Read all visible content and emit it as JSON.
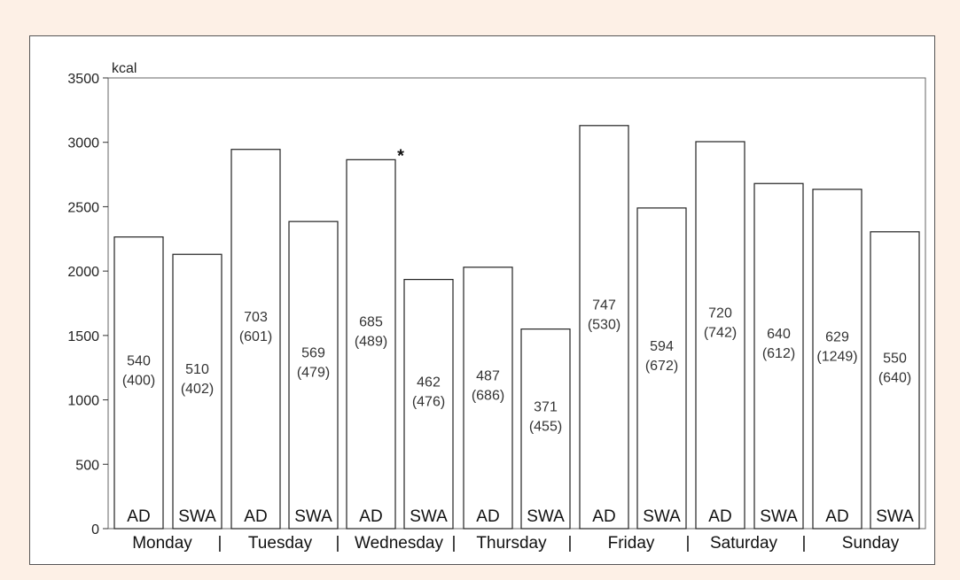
{
  "chart_data": {
    "type": "bar",
    "unit_label": "kcal",
    "ylim": [
      0,
      3500
    ],
    "yticks": [
      0,
      500,
      1000,
      1500,
      2000,
      2500,
      3000,
      3500
    ],
    "days": [
      "Monday",
      "Tuesday",
      "Wednesday",
      "Thursday",
      "Friday",
      "Saturday",
      "Sunday"
    ],
    "separator": "|",
    "bars": [
      {
        "day": "Monday",
        "group": "AD",
        "value": 2265,
        "label_top": "540",
        "label_bottom": "(400)"
      },
      {
        "day": "Monday",
        "group": "SWA",
        "value": 2130,
        "label_top": "510",
        "label_bottom": "(402)"
      },
      {
        "day": "Tuesday",
        "group": "AD",
        "value": 2945,
        "label_top": "703",
        "label_bottom": "(601)"
      },
      {
        "day": "Tuesday",
        "group": "SWA",
        "value": 2385,
        "label_top": "569",
        "label_bottom": "(479)"
      },
      {
        "day": "Wednesday",
        "group": "AD",
        "value": 2865,
        "label_top": "685",
        "label_bottom": "(489)",
        "annotation": "*"
      },
      {
        "day": "Wednesday",
        "group": "SWA",
        "value": 1935,
        "label_top": "462",
        "label_bottom": "(476)"
      },
      {
        "day": "Thursday",
        "group": "AD",
        "value": 2030,
        "label_top": "487",
        "label_bottom": "(686)"
      },
      {
        "day": "Thursday",
        "group": "SWA",
        "value": 1550,
        "label_top": "371",
        "label_bottom": "(455)"
      },
      {
        "day": "Friday",
        "group": "AD",
        "value": 3130,
        "label_top": "747",
        "label_bottom": "(530)"
      },
      {
        "day": "Friday",
        "group": "SWA",
        "value": 2490,
        "label_top": "594",
        "label_bottom": "(672)"
      },
      {
        "day": "Saturday",
        "group": "AD",
        "value": 3005,
        "label_top": "720",
        "label_bottom": "(742)"
      },
      {
        "day": "Saturday",
        "group": "SWA",
        "value": 2680,
        "label_top": "640",
        "label_bottom": "(612)"
      },
      {
        "day": "Sunday",
        "group": "AD",
        "value": 2635,
        "label_top": "629",
        "label_bottom": "(1249)"
      },
      {
        "day": "Sunday",
        "group": "SWA",
        "value": 2305,
        "label_top": "550",
        "label_bottom": "(640)"
      }
    ],
    "grid": false,
    "title": "",
    "xlabel": "",
    "ylabel": "kcal"
  }
}
